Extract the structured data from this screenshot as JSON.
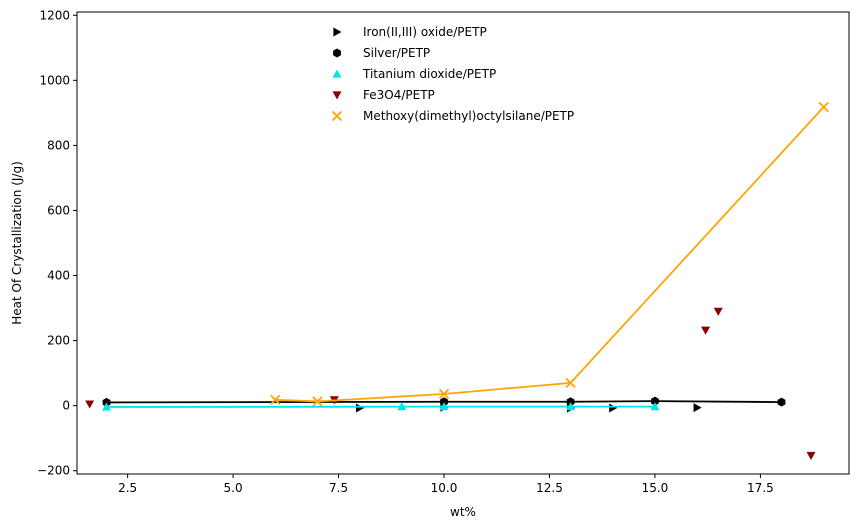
{
  "chart_data": {
    "type": "scatter",
    "title": "",
    "xlabel": "wt%",
    "ylabel": "Heat Of Crystallization (J/g)",
    "xlim": [
      1.3,
      19.6
    ],
    "ylim": [
      -210,
      1210
    ],
    "xticks": [
      2.5,
      5.0,
      7.5,
      10.0,
      12.5,
      15.0,
      17.5
    ],
    "xtick_labels": [
      "2.5",
      "5.0",
      "7.5",
      "10.0",
      "12.5",
      "15.0",
      "17.5"
    ],
    "yticks": [
      -200,
      0,
      200,
      400,
      600,
      800,
      1000,
      1200
    ],
    "ytick_labels": [
      "−200",
      "0",
      "200",
      "400",
      "600",
      "800",
      "1000",
      "1200"
    ],
    "grid": false,
    "legend_position": "top-center",
    "series": [
      {
        "name": "Iron(II,III) oxide/PETP",
        "marker": "triangle-right",
        "color": "#000000",
        "x": [
          8,
          10,
          13,
          14,
          16
        ],
        "y": [
          -7,
          -5,
          -7,
          -7,
          -6
        ],
        "line": false
      },
      {
        "name": "Silver/PETP",
        "marker": "hexagon",
        "color": "#000000",
        "x": [
          2,
          10,
          13,
          15,
          18
        ],
        "y": [
          10,
          12,
          12,
          14,
          11
        ],
        "line": true
      },
      {
        "name": "Titanium dioxide/PETP",
        "marker": "triangle-up",
        "color": "#00e5e5",
        "x": [
          2,
          9,
          10,
          13,
          15
        ],
        "y": [
          -4,
          -3,
          -3,
          -3,
          -3
        ],
        "line": true
      },
      {
        "name": "Fe3O4/PETP",
        "marker": "triangle-down",
        "color": "#8b0000",
        "x": [
          1.6,
          7.4,
          16.2,
          16.5,
          18.7
        ],
        "y": [
          5,
          18,
          232,
          290,
          -153
        ],
        "line": false
      },
      {
        "name": "Methoxy(dimethyl)octylsilane/PETP",
        "marker": "x",
        "color": "#ffa500",
        "x": [
          6,
          7,
          10,
          13,
          19
        ],
        "y": [
          18,
          13,
          36,
          70,
          918
        ],
        "line": true
      }
    ]
  }
}
